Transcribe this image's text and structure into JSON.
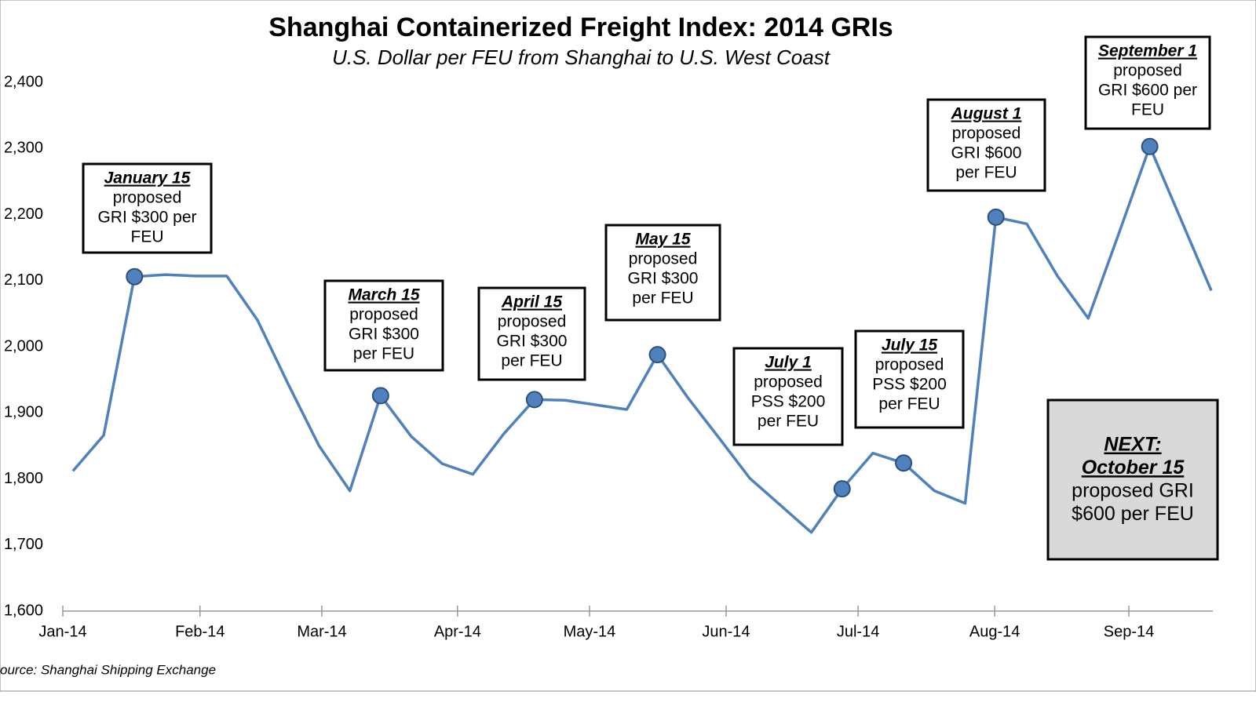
{
  "chart_data": {
    "type": "line",
    "title": "Shanghai Containerized Freight Index: 2014 GRIs",
    "subtitle": "U.S. Dollar per FEU from Shanghai to U.S. West Coast",
    "source": "ource: Shanghai Shipping Exchange",
    "categories": [
      null,
      null,
      null,
      null,
      null,
      null,
      null,
      null,
      null,
      null,
      null,
      null,
      null,
      null,
      null,
      null,
      null,
      null,
      null,
      null,
      null,
      null,
      null,
      null,
      null,
      null,
      null,
      null,
      null,
      null,
      null,
      null,
      null,
      null,
      null,
      null,
      null,
      null
    ],
    "values": [
      1812,
      1866,
      2106,
      2109,
      2107,
      2107,
      2040,
      1943,
      1850,
      1782,
      1926,
      1864,
      1823,
      1807,
      1868,
      1920,
      1919,
      1912,
      1905,
      1988,
      1922,
      1862,
      1801,
      1760,
      1719,
      1785,
      1839,
      1824,
      1782,
      1763,
      2196,
      2186,
      2107,
      2043,
      2172,
      2303,
      2194,
      2085
    ],
    "color": "#4f81bd",
    "markers": [
      2,
      10,
      15,
      19,
      25,
      27,
      30,
      35
    ],
    "marker_color": "#4f81bd",
    "xlim": [
      -0.33,
      37.05
    ],
    "xticks": [
      {
        "value": -0.33,
        "label": "Jan-14"
      },
      {
        "value": 4.13,
        "label": "Feb-14"
      },
      {
        "value": 8.09,
        "label": "Mar-14"
      },
      {
        "value": 12.5,
        "label": "Apr-14"
      },
      {
        "value": 16.79,
        "label": "May-14"
      },
      {
        "value": 21.23,
        "label": "Jun-14"
      },
      {
        "value": 25.52,
        "label": "Jul-14"
      },
      {
        "value": 29.96,
        "label": "Aug-14"
      },
      {
        "value": 34.32,
        "label": "Sep-14"
      }
    ],
    "ylim": [
      1600,
      2400
    ],
    "yticks": [
      {
        "value": 1600,
        "label": "1,600"
      },
      {
        "value": 1700,
        "label": "1,700"
      },
      {
        "value": 1800,
        "label": "1,800"
      },
      {
        "value": 1900,
        "label": "1,900"
      },
      {
        "value": 2000,
        "label": "2,000"
      },
      {
        "value": 2100,
        "label": "2,100"
      },
      {
        "value": 2200,
        "label": "2,200"
      },
      {
        "value": 2300,
        "label": "2,300"
      },
      {
        "value": 2400,
        "label": "2,400"
      }
    ],
    "grid": false,
    "annotations": [
      {
        "title": [
          "January 15"
        ],
        "lines": [
          "proposed",
          "GRI  $300 per",
          "FEU"
        ]
      },
      {
        "title": [
          "March 15"
        ],
        "lines": [
          "proposed",
          "GRI  $300",
          "per FEU"
        ]
      },
      {
        "title": [
          "April 15"
        ],
        "lines": [
          "proposed",
          "GRI  $300",
          "per FEU"
        ]
      },
      {
        "title": [
          "May 15"
        ],
        "lines": [
          "proposed",
          "GRI  $300",
          "per FEU"
        ]
      },
      {
        "title": [
          "July 1"
        ],
        "lines": [
          "proposed",
          "PSS $200",
          "per FEU"
        ]
      },
      {
        "title": [
          "July 15"
        ],
        "lines": [
          "proposed",
          "PSS $200",
          "per FEU"
        ]
      },
      {
        "title": [
          "August 1"
        ],
        "lines": [
          "proposed",
          "GRI  $600",
          "per FEU"
        ]
      },
      {
        "title": [
          "September 1"
        ],
        "lines": [
          "proposed",
          "GRI  $600 per",
          "FEU"
        ]
      },
      {
        "title": [
          "NEXT:",
          "October 15"
        ],
        "lines": [
          "proposed GRI",
          "$600 per FEU"
        ]
      }
    ]
  }
}
